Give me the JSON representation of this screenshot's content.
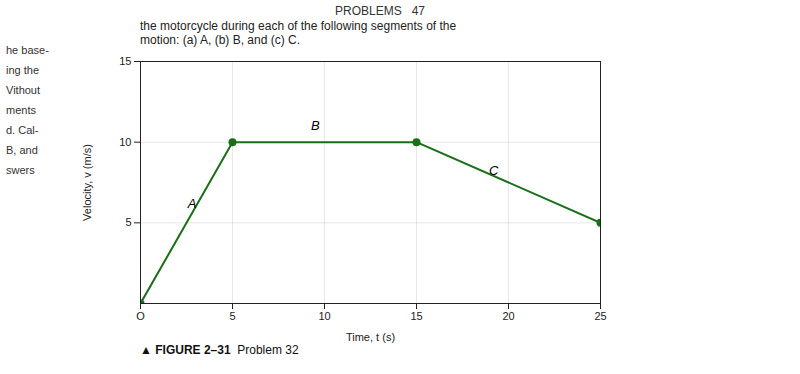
{
  "chart_data": {
    "type": "line",
    "title": "PROBLEMS   47",
    "subtitle": [
      "the motorcycle during each of the following segments of the",
      "motion: (a) A, (b) B, and (c) C."
    ],
    "caption": [
      "▲ FIGURE 2–31",
      "  Problem 32"
    ],
    "margin_text": [
      "he base-",
      "ing the",
      "Vithout",
      "ments",
      "d. Cal-",
      "B, and",
      "swers"
    ],
    "x_label": "Time, t (s)",
    "y_label": "Velocity, v (m/s)",
    "x": [
      0,
      5,
      15,
      25
    ],
    "values": [
      0,
      10,
      10,
      5
    ],
    "color": "#1a6e1a",
    "marker": "circle",
    "annotations": [
      {
        "text": "A",
        "x": 2.8,
        "y": 6.2
      },
      {
        "text": "B",
        "x": 9.5,
        "y": 11.0
      },
      {
        "text": "C",
        "x": 19.2,
        "y": 8.2
      }
    ],
    "xlim": [
      0,
      25
    ],
    "ylim": [
      0,
      15
    ],
    "xticks": [
      {
        "value": 0,
        "label": "O"
      },
      5,
      10,
      15,
      20,
      25
    ],
    "yticks": [
      5,
      10,
      15
    ],
    "grid": true
  }
}
